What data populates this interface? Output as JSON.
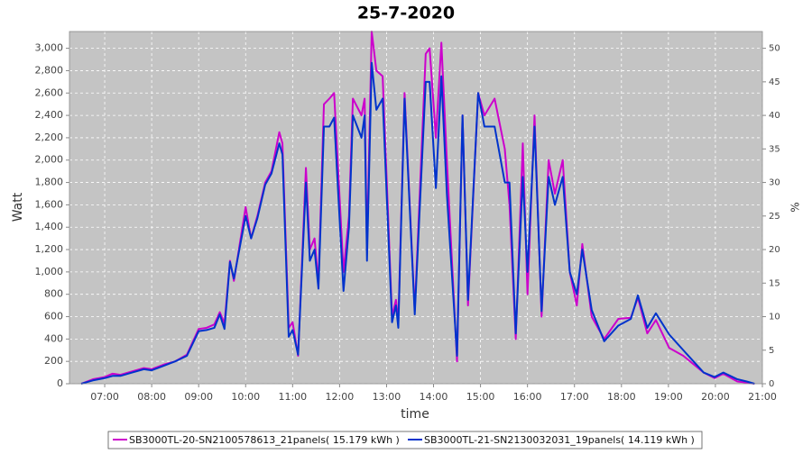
{
  "chart_data": {
    "type": "line",
    "title": "25-7-2020",
    "x_label": "time",
    "y_label": "Watt",
    "y2_label": "%",
    "x": [
      "06:30",
      "06:45",
      "07:00",
      "07:10",
      "07:20",
      "07:35",
      "07:50",
      "08:00",
      "08:15",
      "08:30",
      "08:45",
      "09:00",
      "09:10",
      "09:20",
      "09:27",
      "09:33",
      "09:40",
      "09:45",
      "10:00",
      "10:07",
      "10:15",
      "10:25",
      "10:33",
      "10:43",
      "10:47",
      "10:55",
      "11:00",
      "11:07",
      "11:17",
      "11:22",
      "11:28",
      "11:33",
      "11:40",
      "11:47",
      "11:53",
      "12:05",
      "12:12",
      "12:17",
      "12:28",
      "12:32",
      "12:35",
      "12:41",
      "12:47",
      "12:55",
      "13:07",
      "13:12",
      "13:15",
      "13:23",
      "13:36",
      "13:50",
      "13:55",
      "14:03",
      "14:10",
      "14:17",
      "14:30",
      "14:37",
      "14:44",
      "14:57",
      "15:05",
      "15:18",
      "15:31",
      "15:37",
      "15:45",
      "15:54",
      "16:00",
      "16:09",
      "16:18",
      "16:27",
      "16:35",
      "16:45",
      "16:54",
      "17:03",
      "17:10",
      "17:22",
      "17:38",
      "17:56",
      "18:12",
      "18:21",
      "18:33",
      "18:44",
      "19:01",
      "19:19",
      "19:45",
      "19:59",
      "20:10",
      "20:28",
      "20:40",
      "20:50"
    ],
    "series": [
      {
        "name": "SB3000TL-20-SN2100578613_21panels( 15.179 kWh )",
        "color": "#cc00cc",
        "values": [
          0,
          40,
          60,
          90,
          80,
          110,
          140,
          130,
          170,
          200,
          260,
          490,
          500,
          530,
          640,
          540,
          1100,
          920,
          1580,
          1300,
          1500,
          1800,
          1900,
          2250,
          2150,
          500,
          550,
          250,
          1930,
          1200,
          1300,
          900,
          2500,
          2550,
          2600,
          1000,
          1500,
          2550,
          2400,
          2550,
          1200,
          3150,
          2800,
          2750,
          600,
          750,
          550,
          2600,
          650,
          2950,
          3000,
          2200,
          3050,
          2000,
          200,
          2400,
          700,
          2600,
          2400,
          2550,
          2100,
          1600,
          400,
          2150,
          800,
          2400,
          600,
          2000,
          1700,
          2000,
          1000,
          700,
          1250,
          600,
          400,
          580,
          590,
          770,
          450,
          570,
          320,
          250,
          100,
          50,
          90,
          20,
          10,
          0
        ]
      },
      {
        "name": "SB3000TL-21-SN2130032031_19panels( 14.119 kWh )",
        "color": "#0033cc",
        "values": [
          0,
          30,
          50,
          70,
          70,
          100,
          130,
          120,
          160,
          200,
          250,
          470,
          480,
          500,
          620,
          490,
          1090,
          940,
          1500,
          1300,
          1480,
          1780,
          1880,
          2150,
          2050,
          420,
          480,
          260,
          1800,
          1100,
          1200,
          850,
          2300,
          2300,
          2380,
          830,
          1400,
          2400,
          2200,
          2400,
          1100,
          2870,
          2450,
          2550,
          550,
          700,
          500,
          2550,
          620,
          2700,
          2700,
          1750,
          2750,
          1700,
          250,
          2400,
          750,
          2600,
          2300,
          2300,
          1800,
          1800,
          450,
          1850,
          1000,
          2300,
          650,
          1850,
          1600,
          1850,
          1000,
          800,
          1200,
          660,
          380,
          520,
          580,
          790,
          500,
          630,
          440,
          300,
          100,
          60,
          100,
          40,
          20,
          0
        ]
      }
    ],
    "xlim": [
      "06:15",
      "21:00"
    ],
    "xticks": [
      "07:00",
      "08:00",
      "09:00",
      "10:00",
      "11:00",
      "12:00",
      "13:00",
      "14:00",
      "15:00",
      "16:00",
      "17:00",
      "18:00",
      "19:00",
      "20:00",
      "21:00"
    ],
    "ylim": [
      0,
      3150
    ],
    "yticks": [
      0,
      200,
      400,
      600,
      800,
      {
        "value": 1000,
        "label": "1,000"
      },
      {
        "value": 1200,
        "label": "1,200"
      },
      {
        "value": 1400,
        "label": "1,400"
      },
      {
        "value": 1600,
        "label": "1,600"
      },
      {
        "value": 1800,
        "label": "1,800"
      },
      {
        "value": 2000,
        "label": "2,000"
      },
      {
        "value": 2200,
        "label": "2,200"
      },
      {
        "value": 2400,
        "label": "2,400"
      },
      {
        "value": 2600,
        "label": "2,600"
      },
      {
        "value": 2800,
        "label": "2,800"
      },
      {
        "value": 3000,
        "label": "3,000"
      }
    ],
    "y2lim": [
      0,
      52.5
    ],
    "y2ticks": [
      0,
      5,
      10,
      15,
      20,
      25,
      30,
      35,
      40,
      45,
      50
    ],
    "grid": true
  }
}
